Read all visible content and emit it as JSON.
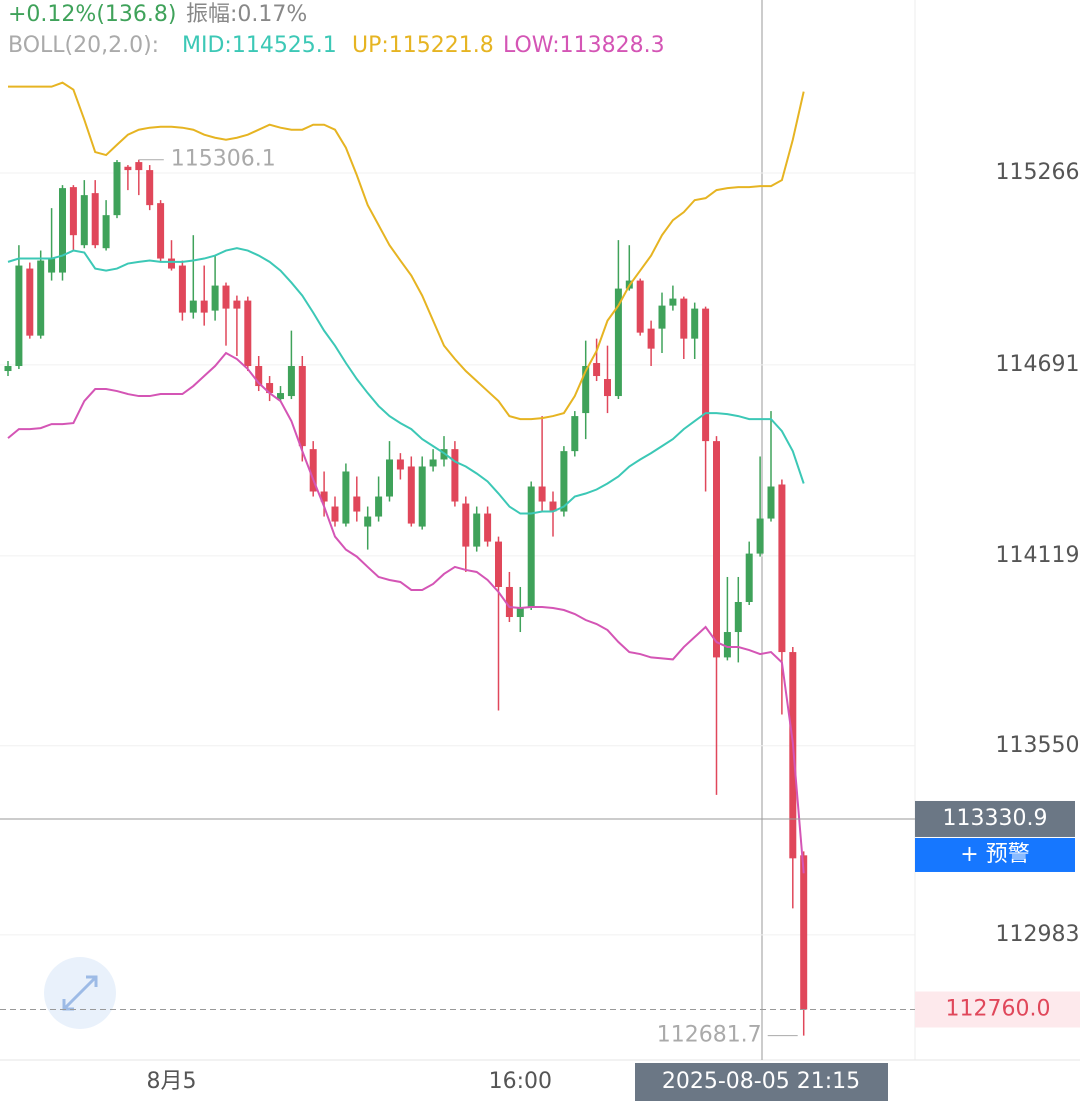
{
  "chart_data": {
    "type": "candlestick",
    "change": "+0.12%(136.8)",
    "amplitude": "振幅:0.17%",
    "indicator": "BOLL(20,2.0):",
    "up_color": "#3fa25a",
    "down_color": "#e0475a",
    "categories": [
      null,
      null,
      null,
      null,
      null,
      null,
      null,
      null,
      null,
      null,
      null,
      null,
      null,
      null,
      null,
      "8月5",
      null,
      null,
      null,
      null,
      null,
      null,
      null,
      null,
      null,
      null,
      null,
      null,
      null,
      null,
      null,
      null,
      null,
      null,
      null,
      null,
      null,
      null,
      null,
      null,
      null,
      null,
      null,
      null,
      null,
      null,
      null,
      "16:00",
      null,
      null,
      null,
      null,
      null,
      null,
      null,
      null,
      null,
      null,
      null,
      null,
      null,
      null,
      null,
      null,
      null,
      null,
      null,
      null,
      null,
      null,
      null,
      null,
      null,
      null
    ],
    "open": [
      114673,
      114688,
      114980,
      114779,
      114968,
      114968,
      115224,
      115050,
      115206,
      115041,
      115140,
      115285,
      115299,
      115275,
      115176,
      115010,
      114989,
      114848,
      114884,
      114854,
      114929,
      114884,
      114884,
      114688,
      114637,
      114589,
      114598,
      114688,
      114439,
      114312,
      114267,
      114216,
      114297,
      114207,
      114237,
      114297,
      114408,
      114387,
      114207,
      114387,
      114408,
      114439,
      114276,
      114147,
      114246,
      114162,
      114026,
      113936,
      113966,
      114327,
      114282,
      114252,
      114433,
      114547,
      114697,
      114649,
      114598,
      114920,
      114944,
      114800,
      114800,
      114869,
      114890,
      114770,
      114860,
      114463,
      113815,
      113891,
      113981,
      114126,
      114231,
      114333,
      113831,
      113222
    ],
    "high": [
      114703,
      115050,
      114998,
      115034,
      115161,
      115230,
      115230,
      115245,
      115245,
      115185,
      115305,
      115290,
      115306.1,
      115290,
      115185,
      115065,
      115004,
      115080,
      114989,
      115019,
      114938,
      114899,
      114896,
      114718,
      114658,
      114628,
      114794,
      114718,
      114463,
      114372,
      114297,
      114396,
      114357,
      114267,
      114357,
      114463,
      114427,
      114417,
      114417,
      114439,
      114478,
      114463,
      114297,
      114267,
      114267,
      114177,
      114071,
      114026,
      114342,
      114538,
      114312,
      114448,
      114553,
      114764,
      114770,
      114749,
      115065,
      115050,
      114950,
      114824,
      114908,
      114929,
      114896,
      114878,
      114866,
      114478,
      114056,
      114056,
      114162,
      114417,
      114553,
      114348,
      113846,
      113234
    ],
    "low": [
      114658,
      114679,
      114770,
      114770,
      114944,
      114944,
      115034,
      115041,
      115041,
      115034,
      115131,
      115215,
      115200,
      115155,
      114998,
      114974,
      114824,
      114830,
      114809,
      114824,
      114749,
      114718,
      114673,
      114613,
      114583,
      114583,
      114589,
      114402,
      114297,
      114237,
      114207,
      114207,
      114222,
      114138,
      114222,
      114282,
      114348,
      114207,
      114198,
      114372,
      114387,
      114267,
      114071,
      114132,
      114147,
      113656,
      113921,
      113891,
      113957,
      114252,
      114177,
      114237,
      114417,
      114469,
      114643,
      114547,
      114589,
      114914,
      114779,
      114688,
      114727,
      114854,
      114709,
      114709,
      114312,
      113403,
      113806,
      113800,
      113972,
      114117,
      114222,
      113644,
      113063,
      112681.7
    ],
    "close": [
      114688,
      114989,
      114779,
      115004,
      115010,
      115221,
      115080,
      115200,
      115050,
      115140,
      115299,
      115275,
      115275,
      115170,
      115010,
      114980,
      114848,
      114884,
      114848,
      114929,
      114860,
      114860,
      114688,
      114628,
      114607,
      114607,
      114688,
      114448,
      114312,
      114282,
      114222,
      114372,
      114252,
      114237,
      114297,
      114408,
      114378,
      114216,
      114387,
      114408,
      114439,
      114282,
      114147,
      114246,
      114162,
      114026,
      113936,
      113966,
      114327,
      114282,
      114252,
      114433,
      114538,
      114688,
      114658,
      114598,
      114920,
      114944,
      114788,
      114740,
      114869,
      114890,
      114770,
      114860,
      114463,
      113815,
      113891,
      113981,
      114126,
      114231,
      114327,
      113831,
      113213,
      112760.0
    ],
    "series": [
      {
        "name": "MID:114525.1",
        "color": "#3cc8b6",
        "values": [
          115000,
          115010,
          115010,
          115010,
          115010,
          115019,
          115034,
          115028,
          114980,
          114974,
          114980,
          114995,
          115000,
          115004,
          115000,
          115000,
          115000,
          115004,
          115010,
          115019,
          115034,
          115041,
          115034,
          115019,
          115000,
          114974,
          114938,
          114899,
          114848,
          114794,
          114749,
          114697,
          114649,
          114607,
          114568,
          114538,
          114517,
          114499,
          114469,
          114448,
          114427,
          114402,
          114387,
          114366,
          114342,
          114306,
          114267,
          114246,
          114246,
          114252,
          114252,
          114267,
          114297,
          114306,
          114318,
          114336,
          114357,
          114387,
          114408,
          114427,
          114448,
          114469,
          114499,
          114523,
          114547,
          114547,
          114544,
          114538,
          114529,
          114529,
          114529,
          114493,
          114433,
          114336
        ]
      },
      {
        "name": "UP:115221.8",
        "color": "#e6b422",
        "values": [
          115525,
          115525,
          115525,
          115525,
          115525,
          115537,
          115516,
          115426,
          115329,
          115320,
          115351,
          115381,
          115396,
          115402,
          115405,
          115405,
          115402,
          115396,
          115381,
          115372,
          115366,
          115372,
          115381,
          115396,
          115411,
          115402,
          115396,
          115396,
          115411,
          115411,
          115396,
          115342,
          115260,
          115170,
          115110,
          115050,
          115004,
          114959,
          114899,
          114824,
          114749,
          114709,
          114673,
          114643,
          114613,
          114583,
          114538,
          114529,
          114529,
          114532,
          114538,
          114547,
          114598,
          114673,
          114733,
          114824,
          114869,
          114929,
          114974,
          115019,
          115080,
          115125,
          115149,
          115185,
          115191,
          115215,
          115221,
          115224,
          115224,
          115227,
          115227,
          115245,
          115366,
          115510
        ]
      },
      {
        "name": "LOW:113828.3",
        "color": "#d455b5",
        "values": [
          114472,
          114499,
          114499,
          114502,
          114514,
          114514,
          114517,
          114583,
          114619,
          114619,
          114613,
          114604,
          114598,
          114598,
          114604,
          114604,
          114604,
          114628,
          114658,
          114688,
          114727,
          114709,
          114679,
          114637,
          114607,
          114583,
          114523,
          114433,
          114348,
          114267,
          114177,
          114138,
          114117,
          114086,
          114056,
          114047,
          114041,
          114017,
          114017,
          114035,
          114065,
          114086,
          114077,
          114071,
          114047,
          114011,
          113966,
          113963,
          113966,
          113966,
          113963,
          113957,
          113945,
          113927,
          113915,
          113897,
          113861,
          113831,
          113825,
          113815,
          113812,
          113809,
          113846,
          113876,
          113906,
          113861,
          113846,
          113846,
          113837,
          113825,
          113831,
          113800,
          113560,
          113168
        ]
      }
    ],
    "ylim": [
      112608.8,
      115784.6
    ],
    "yticks": [
      115266.3,
      114691.4,
      114119.3,
      113550.2,
      112983.8
    ],
    "grid": true,
    "max_label": 115306.1,
    "min_label": 112681.7,
    "crosshair": {
      "x": "2025-08-05 21:15",
      "y": 113330.9
    },
    "alert_button": "+ 预警",
    "last_price": {
      "value": 112760.0,
      "label": "112760.0"
    }
  }
}
